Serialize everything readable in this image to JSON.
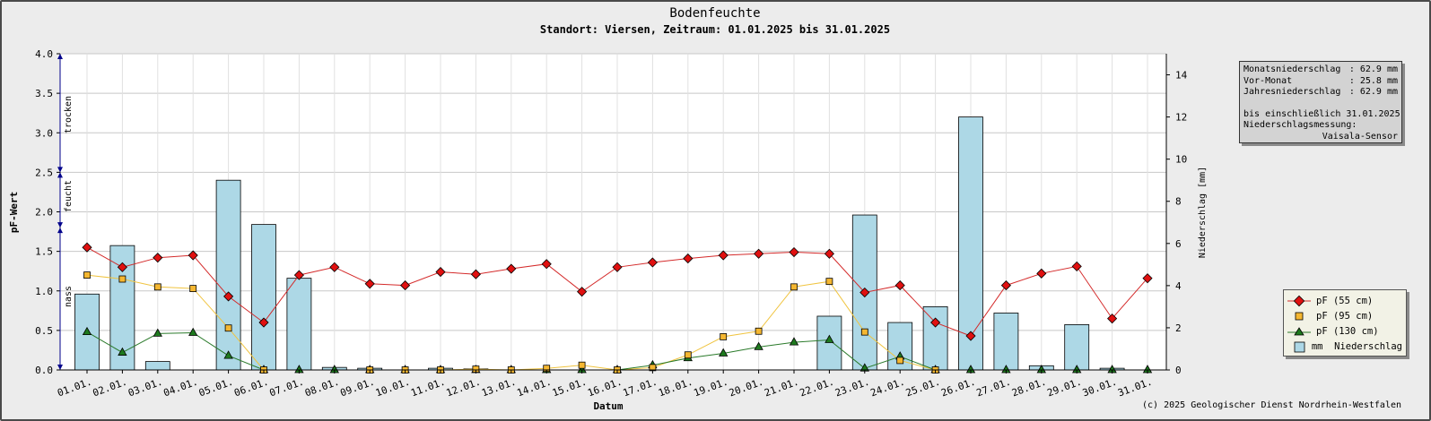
{
  "title": "Bodenfeuchte",
  "subtitle": "Standort: Viersen, Zeitraum: 01.01.2025 bis 31.01.2025",
  "copyright": "(c) 2025 Geologischer Dienst Nordrhein-Westfalen",
  "pf_zones": {
    "trocken": "trocken",
    "feucht": "feucht",
    "nass": "nass"
  },
  "info_box": {
    "monat_label": "Monatsniederschlag",
    "monat_value": "62.9 mm",
    "vormonat_label": "Vor-Monat",
    "vormonat_value": "25.8 mm",
    "jahr_label": "Jahresniederschlag",
    "jahr_value": "62.9 mm",
    "bis_text": "bis einschließlich 31.01.2025",
    "messung_label": "Niederschlagsmessung:",
    "messung_value": "Vaisala-Sensor"
  },
  "legend": {
    "pf55": "pF (55 cm)",
    "pf95": "pF (95 cm)",
    "pf130": "pF (130 cm)",
    "rain": "mm  Niederschlag"
  },
  "colors": {
    "bar_fill": "#add8e6",
    "pf55": "#e01010",
    "pf55_line": "#d42a2a",
    "pf95": "#f5b731",
    "pf95_line": "#f0c440",
    "pf130": "#1e7a1e",
    "pf130_line": "#2a7a2a",
    "zone_arrow": "#00008b",
    "background": "#ececec",
    "plot_bg": "#ffffff"
  },
  "chart_data": {
    "type": "bar",
    "title": "Bodenfeuchte",
    "subtitle": "Standort: Viersen, Zeitraum: 01.01.2025 bis 31.01.2025",
    "xlabel": "Datum",
    "ylabel": "pF-Wert",
    "y2label": "Niederschlag [mm]",
    "ylim": [
      0,
      4.0
    ],
    "y2lim": [
      0,
      15
    ],
    "yticks": [
      "0.0",
      "0.5",
      "1.0",
      "1.5",
      "2.0",
      "2.5",
      "3.0",
      "3.5",
      "4.0"
    ],
    "y2ticks": [
      "0",
      "2",
      "4",
      "6",
      "8",
      "10",
      "12",
      "14"
    ],
    "grid": true,
    "legend_position": "bottom-right",
    "categories": [
      "01.01.",
      "02.01.",
      "03.01.",
      "04.01.",
      "05.01.",
      "06.01.",
      "07.01.",
      "08.01.",
      "09.01.",
      "10.01.",
      "11.01.",
      "12.01.",
      "13.01.",
      "14.01.",
      "15.01.",
      "16.01.",
      "17.01.",
      "18.01.",
      "19.01.",
      "20.01.",
      "21.01.",
      "22.01.",
      "23.01.",
      "24.01.",
      "25.01.",
      "26.01.",
      "27.01.",
      "28.01.",
      "29.01.",
      "30.01.",
      "31.01."
    ],
    "rain_mm": [
      3.6,
      5.9,
      0.4,
      0.0,
      9.0,
      6.9,
      4.35,
      0.12,
      0.08,
      0.0,
      0.08,
      0.05,
      0.0,
      0.0,
      0.0,
      0.0,
      0.0,
      0.0,
      0.0,
      0.0,
      0.0,
      2.55,
      7.35,
      2.25,
      3.0,
      12.0,
      2.7,
      0.2,
      2.15,
      0.08,
      0.0
    ],
    "series": [
      {
        "name": "pF (55 cm)",
        "values": [
          1.55,
          1.3,
          1.42,
          1.45,
          0.93,
          0.6,
          1.2,
          1.3,
          1.09,
          1.07,
          1.24,
          1.21,
          1.28,
          1.34,
          0.99,
          1.3,
          1.36,
          1.41,
          1.45,
          1.47,
          1.49,
          1.47,
          0.98,
          1.07,
          0.6,
          0.43,
          1.07,
          1.22,
          1.31,
          0.65,
          1.16
        ]
      },
      {
        "name": "pF (95 cm)",
        "values": [
          1.2,
          1.15,
          1.05,
          1.03,
          0.53,
          0.0,
          null,
          null,
          0.0,
          0.0,
          0.0,
          0.01,
          0.0,
          0.02,
          0.06,
          0.0,
          0.03,
          0.19,
          0.42,
          0.49,
          1.05,
          1.12,
          0.48,
          0.12,
          0.0,
          null,
          null,
          null,
          null,
          null,
          null
        ]
      },
      {
        "name": "pF (130 cm)",
        "values": [
          0.48,
          0.22,
          0.46,
          0.47,
          0.18,
          0.0,
          0.0,
          0.0,
          0.0,
          0.0,
          0.0,
          0.0,
          0.0,
          0.0,
          0.0,
          0.0,
          0.06,
          0.15,
          0.21,
          0.29,
          0.35,
          0.38,
          0.02,
          0.17,
          0.0,
          0.0,
          0.0,
          0.0,
          0.0,
          0.0,
          0.0
        ]
      }
    ]
  }
}
